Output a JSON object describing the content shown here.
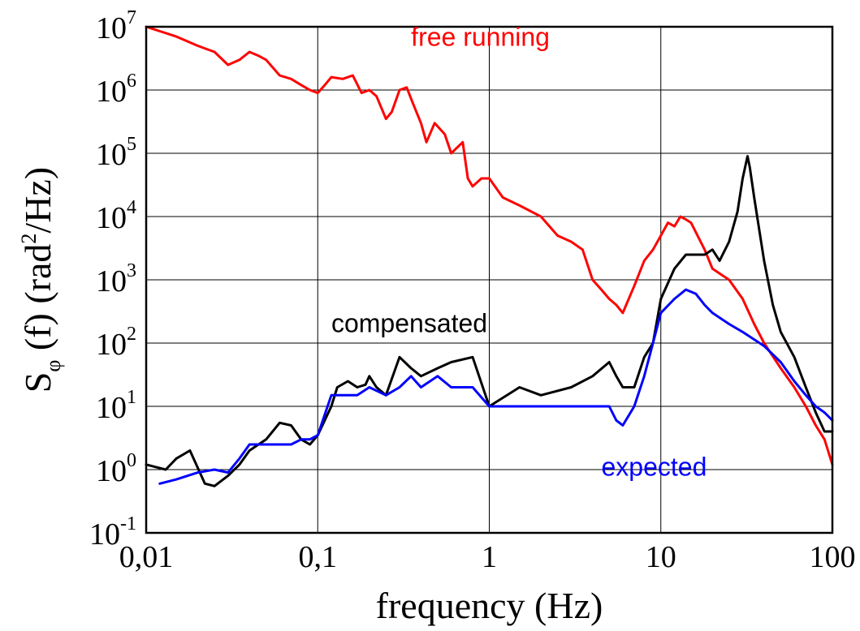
{
  "chart_data": {
    "type": "line",
    "title": "",
    "xlabel": "frequency (Hz)",
    "ylabel": {
      "base": "S",
      "subscript": "φ",
      "middle": " (f) (rad",
      "superscript": "2",
      "end": "/Hz)"
    },
    "xscale": "log",
    "yscale": "log",
    "xlim": [
      0.01,
      100
    ],
    "ylim": [
      0.1,
      10000000
    ],
    "grid": true,
    "x_ticks": [
      {
        "value": 0.01,
        "label": "0,01"
      },
      {
        "value": 0.1,
        "label": "0,1"
      },
      {
        "value": 1,
        "label": "1"
      },
      {
        "value": 10,
        "label": "10"
      },
      {
        "value": 100,
        "label": "100"
      }
    ],
    "y_ticks": [
      {
        "value": 0.1,
        "base": "10",
        "exp": "-1"
      },
      {
        "value": 1,
        "base": "10",
        "exp": "0"
      },
      {
        "value": 10,
        "base": "10",
        "exp": "1"
      },
      {
        "value": 100,
        "base": "10",
        "exp": "2"
      },
      {
        "value": 1000,
        "base": "10",
        "exp": "3"
      },
      {
        "value": 10000,
        "base": "10",
        "exp": "4"
      },
      {
        "value": 100000,
        "base": "10",
        "exp": "5"
      },
      {
        "value": 1000000,
        "base": "10",
        "exp": "6"
      },
      {
        "value": 10000000,
        "base": "10",
        "exp": "7"
      }
    ],
    "series": [
      {
        "name": "free running",
        "color": "#ff0000",
        "label_at": {
          "x": 0.35,
          "y": 5000000
        },
        "x": [
          0.01,
          0.015,
          0.02,
          0.025,
          0.03,
          0.035,
          0.04,
          0.045,
          0.05,
          0.06,
          0.07,
          0.08,
          0.09,
          0.1,
          0.11,
          0.12,
          0.14,
          0.16,
          0.18,
          0.2,
          0.22,
          0.25,
          0.27,
          0.3,
          0.33,
          0.36,
          0.4,
          0.43,
          0.48,
          0.55,
          0.6,
          0.7,
          0.75,
          0.8,
          0.9,
          1.0,
          1.2,
          1.5,
          2.0,
          2.5,
          3.0,
          3.5,
          4.0,
          4.5,
          5.0,
          5.5,
          6.0,
          7.0,
          8.0,
          9.0,
          10,
          11,
          12,
          13,
          14,
          15,
          18,
          20,
          25,
          30,
          35,
          40,
          50,
          60,
          70,
          80,
          90,
          100
        ],
        "y": [
          10000000,
          7000000,
          5000000,
          4000000,
          2500000,
          3000000,
          4000000,
          3500000,
          3000000,
          1700000,
          1500000,
          1200000,
          1000000,
          900000,
          1200000,
          1600000,
          1500000,
          1700000,
          900000,
          1000000,
          800000,
          350000,
          450000,
          1000000,
          1100000,
          600000,
          300000,
          150000,
          300000,
          200000,
          100000,
          150000,
          40000,
          30000,
          40000,
          40000,
          20000,
          15000,
          10000,
          5000,
          4000,
          3000,
          1000,
          700,
          500,
          400,
          300,
          800,
          2000,
          3000,
          5000,
          8000,
          7000,
          10000,
          9000,
          8000,
          3000,
          1500,
          1000,
          500,
          200,
          100,
          40,
          20,
          10,
          5,
          3,
          1.2
        ]
      },
      {
        "name": "compensated",
        "color": "#000000",
        "label_at": {
          "x": 0.12,
          "y": 150
        },
        "x": [
          0.01,
          0.013,
          0.015,
          0.018,
          0.022,
          0.025,
          0.03,
          0.035,
          0.04,
          0.05,
          0.06,
          0.07,
          0.08,
          0.09,
          0.1,
          0.12,
          0.13,
          0.15,
          0.17,
          0.19,
          0.2,
          0.22,
          0.25,
          0.3,
          0.35,
          0.4,
          0.5,
          0.6,
          0.8,
          1.0,
          1.5,
          2.0,
          3.0,
          4.0,
          5.0,
          5.5,
          6.0,
          7.0,
          8.0,
          9.0,
          10,
          12,
          14,
          16,
          18,
          20,
          22,
          25,
          28,
          30,
          32,
          33,
          35,
          40,
          45,
          50,
          60,
          70,
          80,
          90,
          100
        ],
        "y": [
          1.2,
          1.0,
          1.5,
          2.0,
          0.6,
          0.55,
          0.8,
          1.2,
          2.0,
          3.0,
          5.5,
          5.0,
          3.0,
          2.5,
          3.5,
          10,
          20,
          25,
          20,
          22,
          30,
          20,
          15,
          60,
          40,
          30,
          40,
          50,
          60,
          10,
          20,
          15,
          20,
          30,
          50,
          30,
          20,
          20,
          60,
          100,
          500,
          1500,
          2500,
          2500,
          2500,
          3000,
          2000,
          4000,
          12000,
          40000,
          90000,
          60000,
          20000,
          2000,
          400,
          150,
          60,
          20,
          8,
          4,
          4
        ]
      },
      {
        "name": "expected",
        "color": "#0000ff",
        "label_at": {
          "x": 4.5,
          "y": 0.8
        },
        "x": [
          0.012,
          0.015,
          0.02,
          0.025,
          0.03,
          0.035,
          0.04,
          0.05,
          0.06,
          0.07,
          0.08,
          0.09,
          0.1,
          0.12,
          0.14,
          0.17,
          0.2,
          0.25,
          0.3,
          0.35,
          0.4,
          0.5,
          0.6,
          0.8,
          1.0,
          1.5,
          2.0,
          3.0,
          4.0,
          5.0,
          5.5,
          6.0,
          7.0,
          8.0,
          9.0,
          10,
          12,
          14,
          16,
          18,
          20,
          25,
          30,
          40,
          50,
          60,
          70,
          80,
          90,
          100
        ],
        "y": [
          0.6,
          0.7,
          0.9,
          1.0,
          0.9,
          1.5,
          2.5,
          2.5,
          2.5,
          2.5,
          3.0,
          3.0,
          3.5,
          15,
          15,
          15,
          20,
          15,
          20,
          30,
          20,
          30,
          20,
          20,
          10,
          10,
          10,
          10,
          10,
          10,
          6,
          5,
          10,
          30,
          100,
          300,
          500,
          700,
          600,
          400,
          300,
          200,
          150,
          90,
          50,
          25,
          15,
          10,
          8,
          6
        ]
      }
    ]
  }
}
